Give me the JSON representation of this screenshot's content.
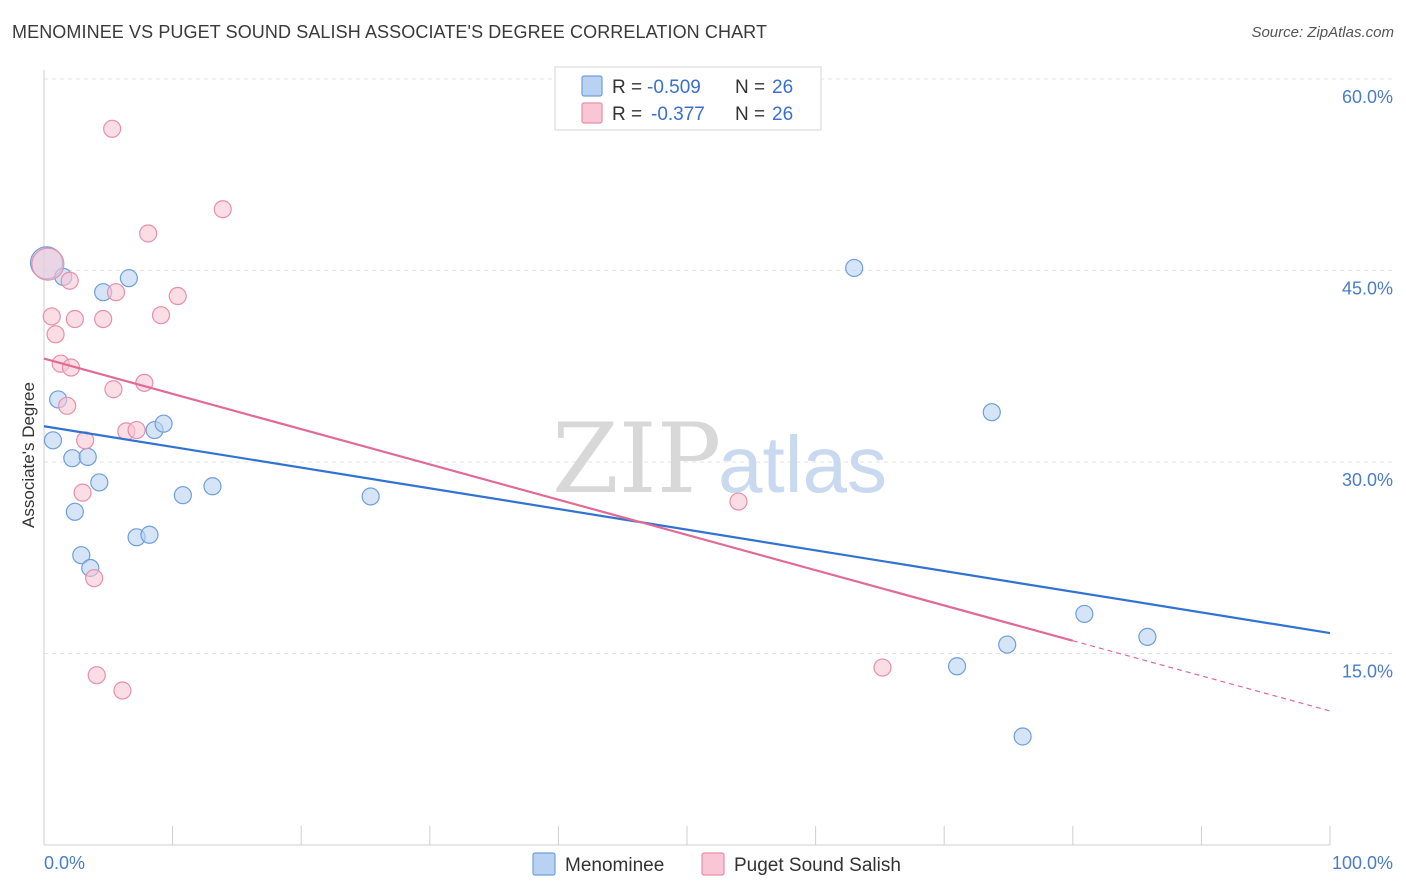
{
  "title": "MENOMINEE VS PUGET SOUND SALISH ASSOCIATE'S DEGREE CORRELATION CHART",
  "source": "Source: ZipAtlas.com",
  "watermark": {
    "zip": "ZIP",
    "atlas": "atlas"
  },
  "legend": {
    "r_label": "R =",
    "n_label": "N =",
    "rows": [
      {
        "r": "-0.509",
        "n": "26"
      },
      {
        "r": "-0.377",
        "n": "26"
      }
    ]
  },
  "colors": {
    "menominee_fill": "#b9d2f2",
    "menominee_stroke": "#6f9fdb",
    "menominee_line": "#3273d2",
    "salish_fill": "#f8c6d4",
    "salish_stroke": "#e98fab",
    "salish_line": "#e06b95",
    "grid": "#e3e3e3",
    "axis_text": "#4a7cc8"
  },
  "chart_data": {
    "type": "scatter",
    "title": "MENOMINEE VS PUGET SOUND SALISH ASSOCIATE'S DEGREE CORRELATION CHART",
    "xlabel": "",
    "ylabel": "Associate's Degree",
    "xlim": [
      0,
      100
    ],
    "ylim": [
      0,
      63
    ],
    "x_tick_labels": [
      "0.0%",
      "100.0%"
    ],
    "y_ticks": [
      15,
      30,
      45,
      60
    ],
    "y_tick_labels": [
      "15.0%",
      "30.0%",
      "45.0%",
      "60.0%"
    ],
    "grid": true,
    "legend_placement": "top-center",
    "series": [
      {
        "name": "Menominee",
        "points": [
          [
            0.2,
            45.6
          ],
          [
            1.5,
            44.5
          ],
          [
            0.7,
            31.7
          ],
          [
            1.1,
            34.9
          ],
          [
            2.2,
            30.3
          ],
          [
            3.4,
            30.4
          ],
          [
            2.4,
            26.1
          ],
          [
            4.3,
            28.4
          ],
          [
            2.9,
            22.7
          ],
          [
            3.6,
            21.7
          ],
          [
            4.6,
            43.3
          ],
          [
            6.6,
            44.4
          ],
          [
            7.2,
            24.1
          ],
          [
            8.2,
            24.3
          ],
          [
            8.6,
            32.5
          ],
          [
            9.3,
            33.0
          ],
          [
            10.8,
            27.4
          ],
          [
            13.1,
            28.1
          ],
          [
            25.4,
            27.3
          ],
          [
            63.0,
            45.2
          ],
          [
            73.7,
            33.9
          ],
          [
            71.0,
            14.0
          ],
          [
            74.9,
            15.7
          ],
          [
            76.1,
            8.5
          ],
          [
            80.9,
            18.1
          ],
          [
            85.8,
            16.3
          ]
        ]
      },
      {
        "name": "Puget Sound Salish",
        "points": [
          [
            0.3,
            45.5
          ],
          [
            5.3,
            56.1
          ],
          [
            13.9,
            49.8
          ],
          [
            8.1,
            47.9
          ],
          [
            2.0,
            44.2
          ],
          [
            5.6,
            43.3
          ],
          [
            10.4,
            43.0
          ],
          [
            0.6,
            41.4
          ],
          [
            2.4,
            41.2
          ],
          [
            4.6,
            41.2
          ],
          [
            9.1,
            41.5
          ],
          [
            0.9,
            40.0
          ],
          [
            1.3,
            37.7
          ],
          [
            2.1,
            37.4
          ],
          [
            7.8,
            36.2
          ],
          [
            5.4,
            35.7
          ],
          [
            1.8,
            34.4
          ],
          [
            6.4,
            32.4
          ],
          [
            7.2,
            32.5
          ],
          [
            3.2,
            31.7
          ],
          [
            3.0,
            27.6
          ],
          [
            3.9,
            20.9
          ],
          [
            54.0,
            26.9
          ],
          [
            65.2,
            13.9
          ],
          [
            4.1,
            13.3
          ],
          [
            6.1,
            12.1
          ]
        ]
      }
    ],
    "trend_lines": [
      {
        "series": "Menominee",
        "x0": 0,
        "y0": 32.8,
        "x1": 100,
        "y1": 16.6
      },
      {
        "series": "Puget Sound Salish",
        "x0": 0,
        "y0": 38.1,
        "x1": 80,
        "y1": 16.0,
        "dashed_to_x": 100,
        "dashed_to_y": 10.5
      }
    ]
  }
}
